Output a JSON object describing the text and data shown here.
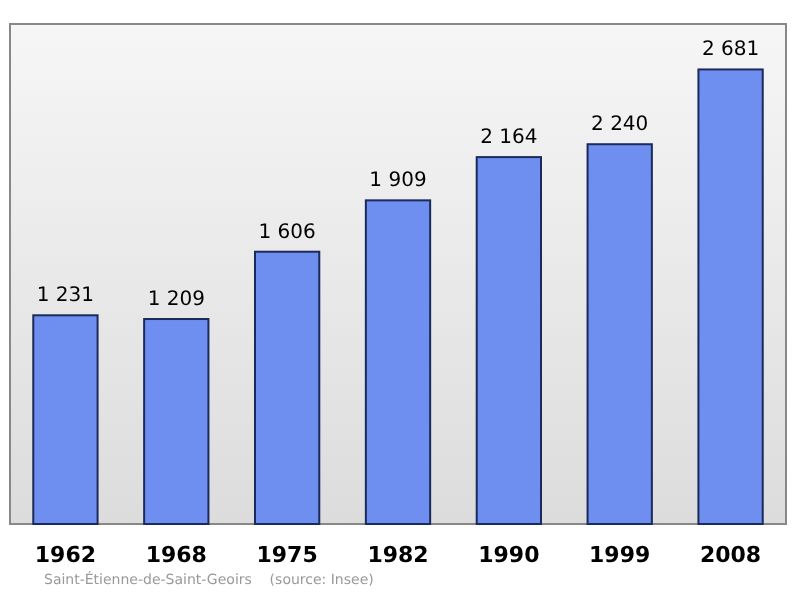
{
  "chart_data": {
    "type": "bar",
    "categories": [
      "1962",
      "1968",
      "1975",
      "1982",
      "1990",
      "1999",
      "2008"
    ],
    "values": [
      1231,
      1209,
      1606,
      1909,
      2164,
      2240,
      2681
    ],
    "value_labels": [
      "1 231",
      "1 209",
      "1 606",
      "1 909",
      "2 164",
      "2 240",
      "2 681"
    ],
    "color": "#6f8ff0",
    "annotations": [
      "Saint-Étienne-de-Saint-Geoirs    (source: Insee)"
    ]
  }
}
